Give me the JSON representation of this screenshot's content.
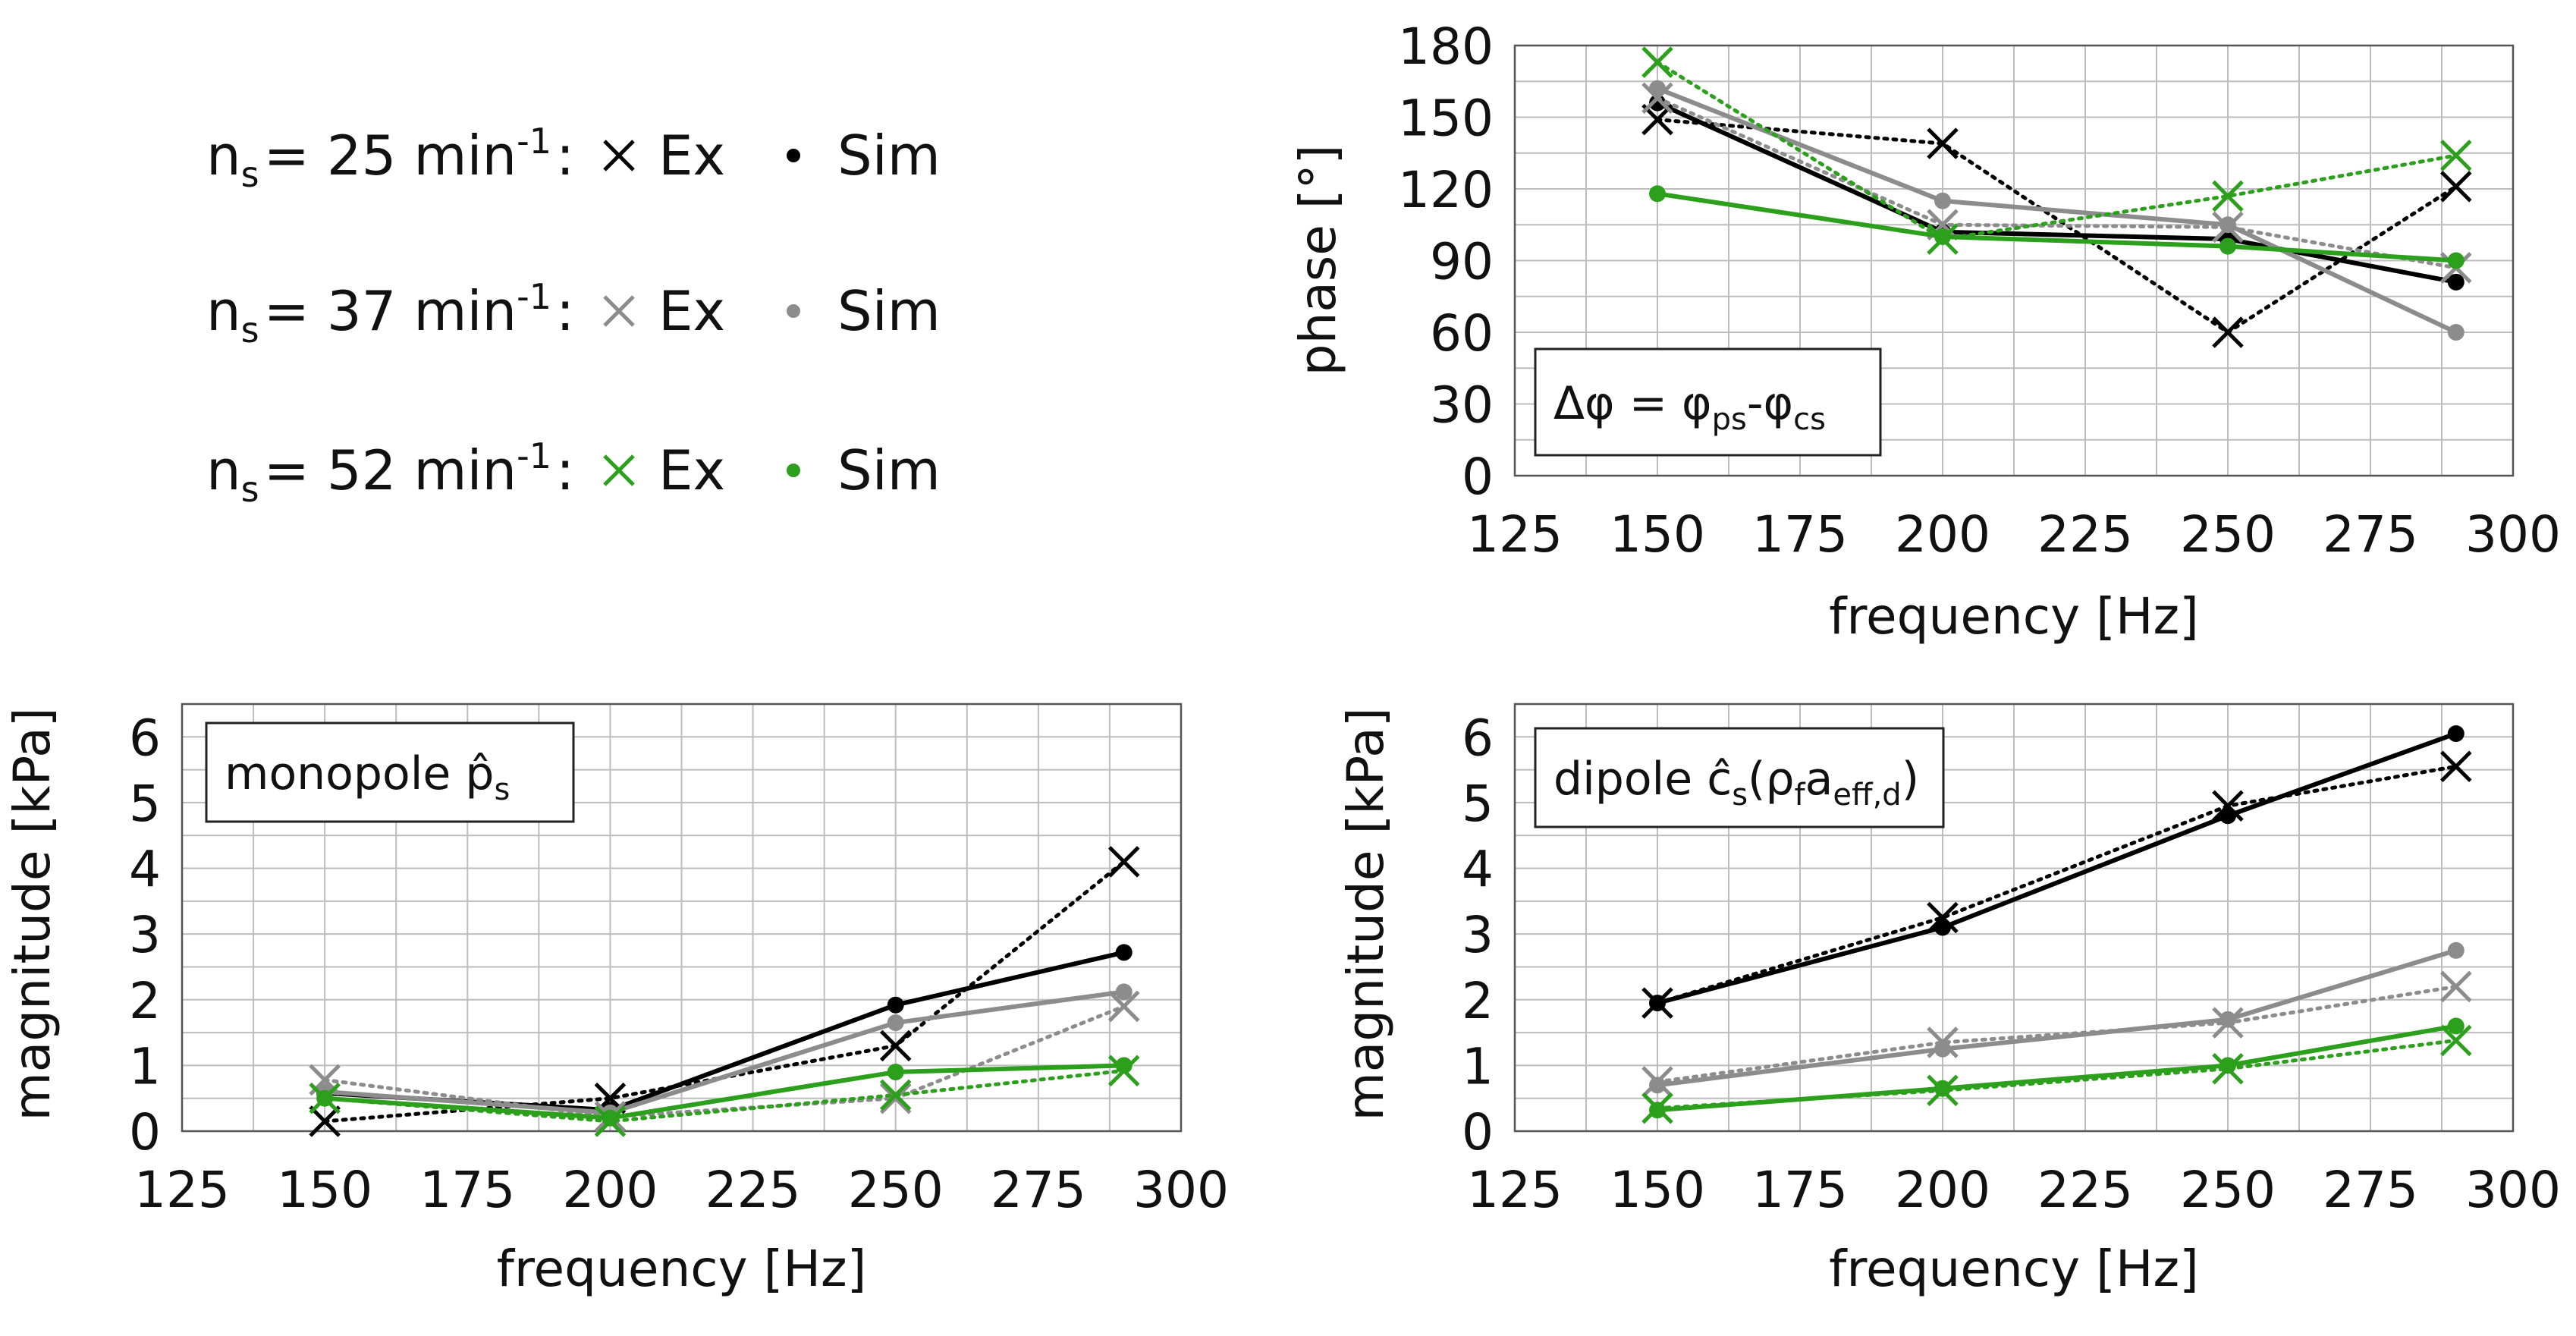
{
  "colors": {
    "s25": "#000000",
    "s37": "#8c8c8c",
    "s52": "#2ca01c",
    "grid": "#bdbdbd",
    "frame": "#555555"
  },
  "legend": {
    "rows": [
      {
        "n_label": "n",
        "n_sub": "s",
        "speed": "= 25 min",
        "sup": "-1",
        "colon": ":",
        "ex_label": "Ex",
        "sim_label": "Sim",
        "color_key": "s25"
      },
      {
        "n_label": "n",
        "n_sub": "s",
        "speed": "= 37 min",
        "sup": "-1",
        "colon": ":",
        "ex_label": "Ex",
        "sim_label": "Sim",
        "color_key": "s37"
      },
      {
        "n_label": "n",
        "n_sub": "s",
        "speed": "= 52 min",
        "sup": "-1",
        "colon": ":",
        "ex_label": "Ex",
        "sim_label": "Sim",
        "color_key": "s52"
      }
    ]
  },
  "chart_data": [
    {
      "id": "phase",
      "type": "line",
      "annotation": {
        "parts": [
          [
            "Δφ = φ",
            "n"
          ],
          [
            "ps",
            "sub"
          ],
          [
            "-φ",
            "n"
          ],
          [
            "cs",
            "sub"
          ]
        ]
      },
      "xlabel": "frequency [Hz]",
      "ylabel": "phase [°]",
      "xlim": [
        125,
        300
      ],
      "ylim": [
        0,
        180
      ],
      "xticks": [
        125,
        150,
        175,
        200,
        225,
        250,
        275,
        300
      ],
      "yticks": [
        0,
        30,
        60,
        90,
        120,
        150,
        180
      ],
      "x": [
        150,
        200,
        250,
        290
      ],
      "series": [
        {
          "name": "n_s = 25 min^-1 Ex",
          "kind": "Ex",
          "color_key": "s25",
          "values": [
            149,
            139,
            60,
            121
          ]
        },
        {
          "name": "n_s = 25 min^-1 Sim",
          "kind": "Sim",
          "color_key": "s25",
          "values": [
            156,
            102,
            99,
            81
          ]
        },
        {
          "name": "n_s = 37 min^-1 Ex",
          "kind": "Ex",
          "color_key": "s37",
          "values": [
            158,
            105,
            104,
            87
          ]
        },
        {
          "name": "n_s = 37 min^-1 Sim",
          "kind": "Sim",
          "color_key": "s37",
          "values": [
            162,
            115,
            105,
            60
          ]
        },
        {
          "name": "n_s = 52 min^-1 Ex",
          "kind": "Ex",
          "color_key": "s52",
          "values": [
            173,
            99,
            117,
            134
          ]
        },
        {
          "name": "n_s = 52 min^-1 Sim",
          "kind": "Sim",
          "color_key": "s52",
          "values": [
            118,
            100,
            96,
            90
          ]
        }
      ]
    },
    {
      "id": "monopole",
      "type": "line",
      "annotation": {
        "parts": [
          [
            "monopole p̂",
            "n"
          ],
          [
            "s",
            "sub"
          ]
        ]
      },
      "xlabel": "frequency [Hz]",
      "ylabel": "magnitude [kPa]",
      "xlim": [
        125,
        300
      ],
      "ylim": [
        0,
        6.5
      ],
      "xticks": [
        125,
        150,
        175,
        200,
        225,
        250,
        275,
        300
      ],
      "yticks": [
        0,
        1,
        2,
        3,
        4,
        5,
        6
      ],
      "x": [
        150,
        200,
        250,
        290
      ],
      "series": [
        {
          "name": "n_s = 25 min^-1 Ex",
          "kind": "Ex",
          "color_key": "s25",
          "values": [
            0.15,
            0.5,
            1.3,
            4.1
          ]
        },
        {
          "name": "n_s = 25 min^-1 Sim",
          "kind": "Sim",
          "color_key": "s25",
          "values": [
            0.58,
            0.32,
            1.92,
            2.72
          ]
        },
        {
          "name": "n_s = 37 min^-1 Ex",
          "kind": "Ex",
          "color_key": "s37",
          "values": [
            0.78,
            0.22,
            0.5,
            1.9
          ]
        },
        {
          "name": "n_s = 37 min^-1 Sim",
          "kind": "Sim",
          "color_key": "s37",
          "values": [
            0.6,
            0.28,
            1.65,
            2.12
          ]
        },
        {
          "name": "n_s = 52 min^-1 Ex",
          "kind": "Ex",
          "color_key": "s52",
          "values": [
            0.5,
            0.15,
            0.55,
            0.92
          ]
        },
        {
          "name": "n_s = 52 min^-1 Sim",
          "kind": "Sim",
          "color_key": "s52",
          "values": [
            0.5,
            0.2,
            0.9,
            1.0
          ]
        }
      ]
    },
    {
      "id": "dipole",
      "type": "line",
      "annotation": {
        "parts": [
          [
            "dipole ĉ",
            "n"
          ],
          [
            "s",
            "sub"
          ],
          [
            "(ρ",
            "n"
          ],
          [
            "f",
            "sub"
          ],
          [
            "a",
            "n"
          ],
          [
            "eff,d",
            "sub"
          ],
          [
            ")",
            "n"
          ]
        ]
      },
      "xlabel": "frequency [Hz]",
      "ylabel": "magnitude [kPa]",
      "xlim": [
        125,
        300
      ],
      "ylim": [
        0,
        6.5
      ],
      "xticks": [
        125,
        150,
        175,
        200,
        225,
        250,
        275,
        300
      ],
      "yticks": [
        0,
        1,
        2,
        3,
        4,
        5,
        6
      ],
      "x": [
        150,
        200,
        250,
        290
      ],
      "series": [
        {
          "name": "n_s = 25 min^-1 Ex",
          "kind": "Ex",
          "color_key": "s25",
          "values": [
            1.95,
            3.25,
            4.95,
            5.55
          ]
        },
        {
          "name": "n_s = 25 min^-1 Sim",
          "kind": "Sim",
          "color_key": "s25",
          "values": [
            1.95,
            3.1,
            4.8,
            6.05
          ]
        },
        {
          "name": "n_s = 37 min^-1 Ex",
          "kind": "Ex",
          "color_key": "s37",
          "values": [
            0.75,
            1.35,
            1.65,
            2.2
          ]
        },
        {
          "name": "n_s = 37 min^-1 Sim",
          "kind": "Sim",
          "color_key": "s37",
          "values": [
            0.7,
            1.25,
            1.7,
            2.75
          ]
        },
        {
          "name": "n_s = 52 min^-1 Ex",
          "kind": "Ex",
          "color_key": "s52",
          "values": [
            0.35,
            0.62,
            0.95,
            1.38
          ]
        },
        {
          "name": "n_s = 52 min^-1 Sim",
          "kind": "Sim",
          "color_key": "s52",
          "values": [
            0.32,
            0.65,
            1.0,
            1.6
          ]
        }
      ]
    }
  ]
}
